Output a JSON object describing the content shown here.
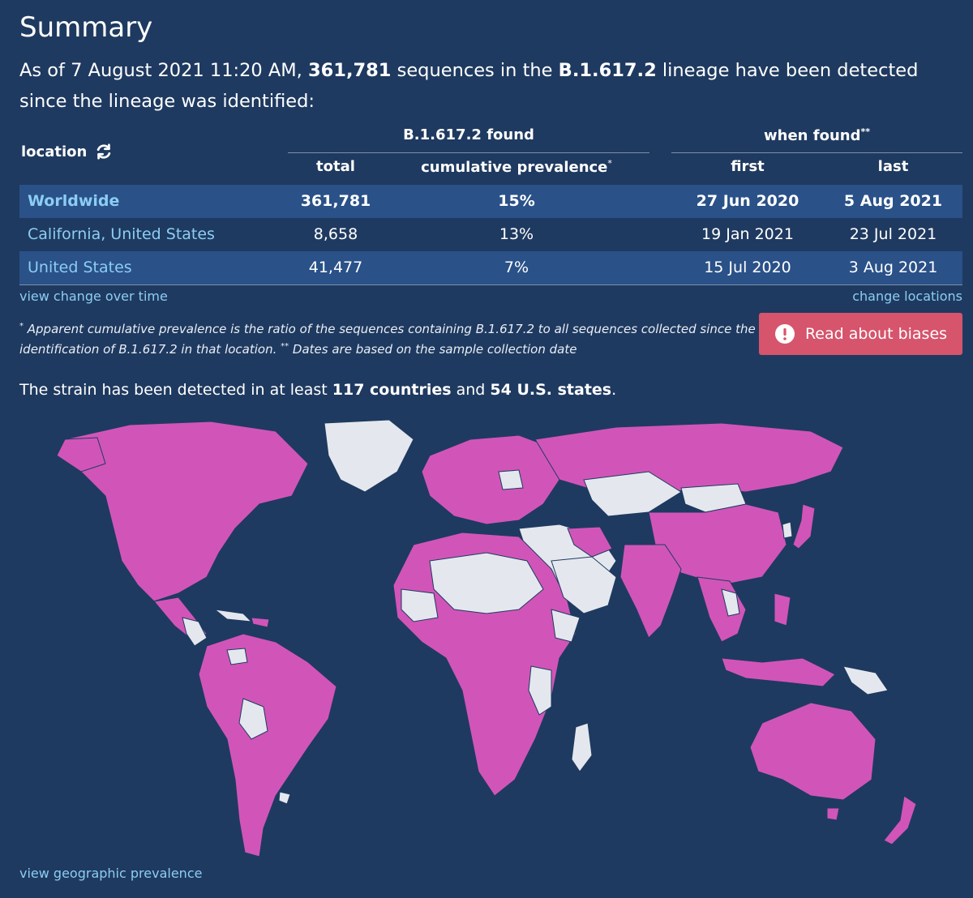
{
  "summary": {
    "title": "Summary",
    "intro_prefix": "As of 7 August 2021 11:20 AM, ",
    "sequences": "361,781",
    "intro_mid": " sequences in the ",
    "lineage": "B.1.617.2",
    "intro_suffix": " lineage have been detected since the lineage was identified:"
  },
  "table": {
    "location_header": "location",
    "group_found": "B.1.617.2 found",
    "group_when": "when found",
    "group_when_sup": "**",
    "col_total": "total",
    "col_prevalence": "cumulative prevalence",
    "col_prevalence_sup": "*",
    "col_first": "first",
    "col_last": "last",
    "rows": [
      {
        "location": "Worldwide",
        "total": "361,781",
        "prevalence": "15%",
        "first": "27 Jun 2020",
        "last": "5 Aug 2021"
      },
      {
        "location": "California, United States",
        "total": "8,658",
        "prevalence": "13%",
        "first": "19 Jan 2021",
        "last": "23 Jul 2021"
      },
      {
        "location": "United States",
        "total": "41,477",
        "prevalence": "7%",
        "first": "15 Jul 2020",
        "last": "3 Aug 2021"
      }
    ]
  },
  "links": {
    "change_over_time": "view change over time",
    "change_locations": "change locations",
    "geo_prevalence": "view geographic prevalence"
  },
  "footnote": {
    "star": "*",
    "text1": " Apparent cumulative prevalence is the ratio of the sequences containing B.1.617.2 to all sequences collected since the identification of B.1.617.2 in that location.  ",
    "dstar": "**",
    "text2": " Dates are based on the sample collection date"
  },
  "biases_button": {
    "label": "Read about biases",
    "icon": "alert-circle-icon"
  },
  "strain": {
    "prefix": "The strain has been detected in at least ",
    "countries": "117 countries",
    "mid": " and ",
    "states": "54 U.S. states",
    "suffix": "."
  },
  "colors": {
    "background": "#1f3a60",
    "row_stripe": "#2a5188",
    "link": "#8ccdf4",
    "detected": "#d155b8",
    "not_detected": "#e4e8ee",
    "button": "#d6546c"
  }
}
